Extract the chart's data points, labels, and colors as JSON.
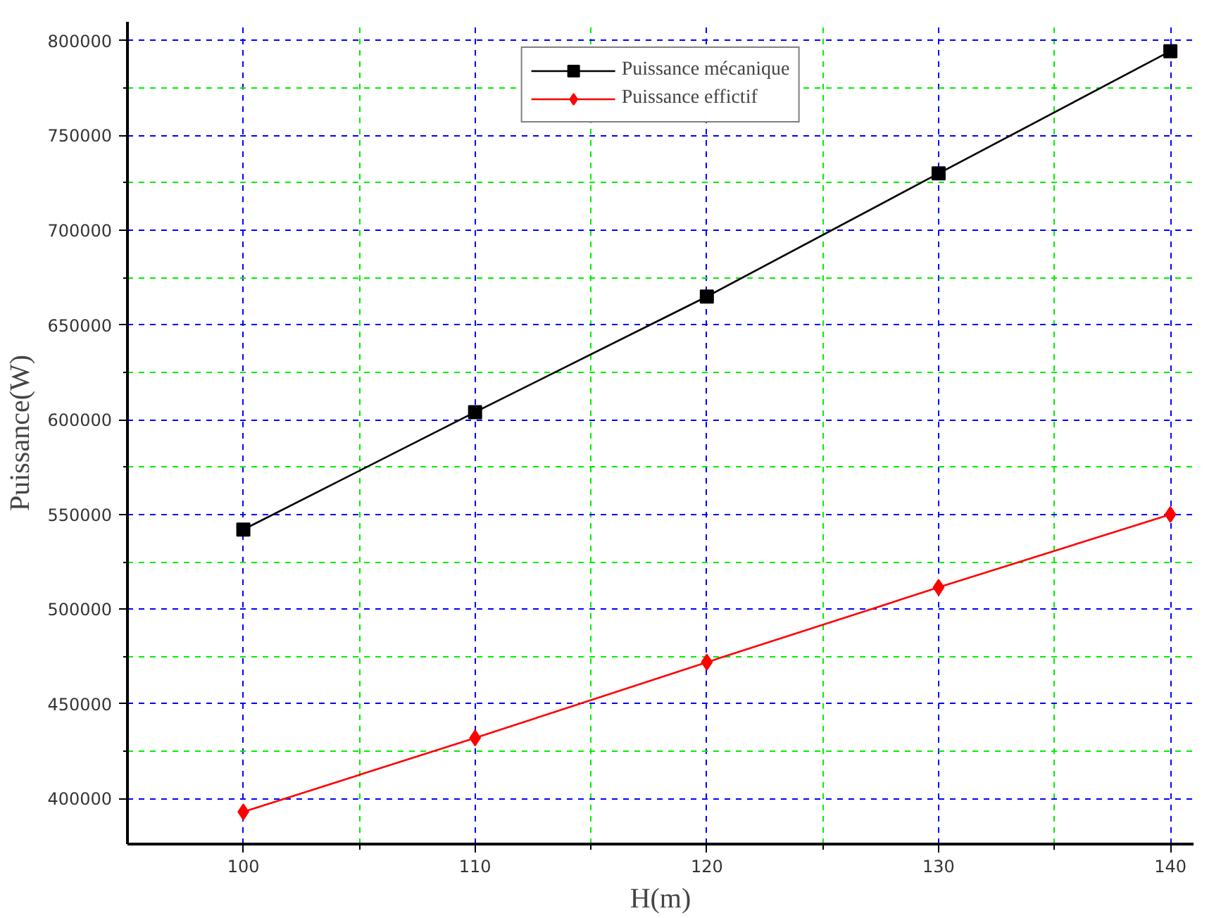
{
  "chart_data": {
    "type": "line",
    "xlabel": "H(m)",
    "ylabel": "Puissance(W)",
    "x": [
      100,
      110,
      120,
      130,
      140
    ],
    "series": [
      {
        "name": "Puissance mécanique",
        "color": "#000000",
        "marker": "square",
        "values": [
          542000,
          604000,
          665000,
          730000,
          794500
        ]
      },
      {
        "name": "Puissance effictif",
        "color": "#ff0000",
        "marker": "diamond",
        "values": [
          393000,
          432000,
          472000,
          511500,
          550000
        ]
      }
    ],
    "xlim": [
      95,
      141
    ],
    "ylim": [
      376000,
      810000
    ],
    "xticks": [
      100,
      {
        "value": 105,
        "label": null
      },
      110,
      {
        "value": 115,
        "label": null
      },
      120,
      {
        "value": 125,
        "label": null
      },
      130,
      {
        "value": 135,
        "label": null
      },
      140
    ],
    "yticks": [
      400000,
      {
        "value": 425000,
        "label": null
      },
      450000,
      {
        "value": 475000,
        "label": null
      },
      500000,
      {
        "value": 525000,
        "label": null
      },
      550000,
      {
        "value": 575000,
        "label": null
      },
      600000,
      {
        "value": 625000,
        "label": null
      },
      650000,
      {
        "value": 675000,
        "label": null
      },
      700000,
      {
        "value": 725000,
        "label": null
      },
      750000,
      {
        "value": 775000,
        "label": null
      },
      800000
    ],
    "grid": true,
    "legend": "top",
    "line_style": "solid"
  }
}
